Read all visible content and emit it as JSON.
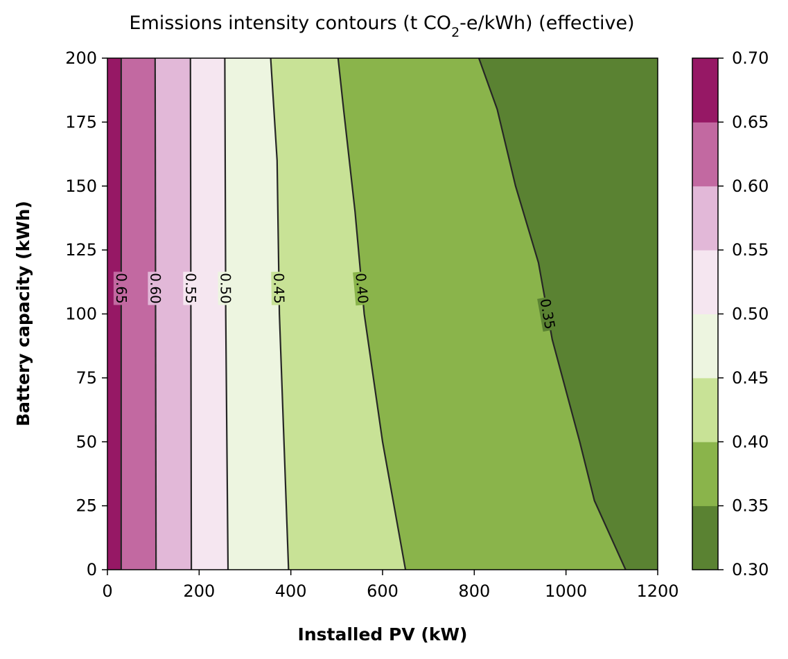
{
  "chart_data": {
    "type": "contour",
    "title_prefix": "Emissions intensity contours (t CO",
    "title_sub": "2",
    "title_suffix": "-e/kWh) (effective)",
    "xlabel": "Installed PV (kW)",
    "ylabel": "Battery capacity (kWh)",
    "xlim": [
      0,
      1200
    ],
    "ylim": [
      0,
      200
    ],
    "x_ticks": [
      0,
      200,
      400,
      600,
      800,
      1000,
      1200
    ],
    "y_ticks": [
      0,
      25,
      50,
      75,
      100,
      125,
      150,
      175,
      200
    ],
    "levels": [
      0.3,
      0.35,
      0.4,
      0.45,
      0.5,
      0.55,
      0.6,
      0.65,
      0.7
    ],
    "level_colors": [
      "#5a8232",
      "#8ab44b",
      "#c8e296",
      "#edf5e0",
      "#f5e6f0",
      "#e2b8d8",
      "#c269a1",
      "#961865"
    ],
    "colorbar_labels": [
      "0.30",
      "0.35",
      "0.40",
      "0.45",
      "0.50",
      "0.55",
      "0.60",
      "0.65",
      "0.70"
    ],
    "contour_lines": [
      {
        "level": 0.65,
        "label": "0.65",
        "points": [
          [
            30,
            0
          ],
          [
            30,
            100
          ],
          [
            30,
            200
          ]
        ]
      },
      {
        "level": 0.6,
        "label": "0.60",
        "points": [
          [
            106,
            0
          ],
          [
            105,
            100
          ],
          [
            104,
            200
          ]
        ]
      },
      {
        "level": 0.55,
        "label": "0.55",
        "points": [
          [
            183,
            0
          ],
          [
            182,
            100
          ],
          [
            181,
            200
          ]
        ]
      },
      {
        "level": 0.5,
        "label": "0.50",
        "points": [
          [
            263,
            0
          ],
          [
            258,
            100
          ],
          [
            256,
            200
          ]
        ]
      },
      {
        "level": 0.45,
        "label": "0.45",
        "points": [
          [
            395,
            0
          ],
          [
            375,
            100
          ],
          [
            370,
            160
          ],
          [
            356,
            200
          ]
        ]
      },
      {
        "level": 0.4,
        "label": "0.40",
        "points": [
          [
            650,
            0
          ],
          [
            600,
            50
          ],
          [
            560,
            100
          ],
          [
            540,
            140
          ],
          [
            515,
            180
          ],
          [
            503,
            200
          ]
        ]
      },
      {
        "level": 0.35,
        "label": "0.35",
        "points": [
          [
            1130,
            0
          ],
          [
            1062,
            27
          ],
          [
            1030,
            50
          ],
          [
            970,
            90
          ],
          [
            940,
            120
          ],
          [
            890,
            150
          ],
          [
            850,
            180
          ],
          [
            810,
            200
          ]
        ]
      }
    ]
  }
}
